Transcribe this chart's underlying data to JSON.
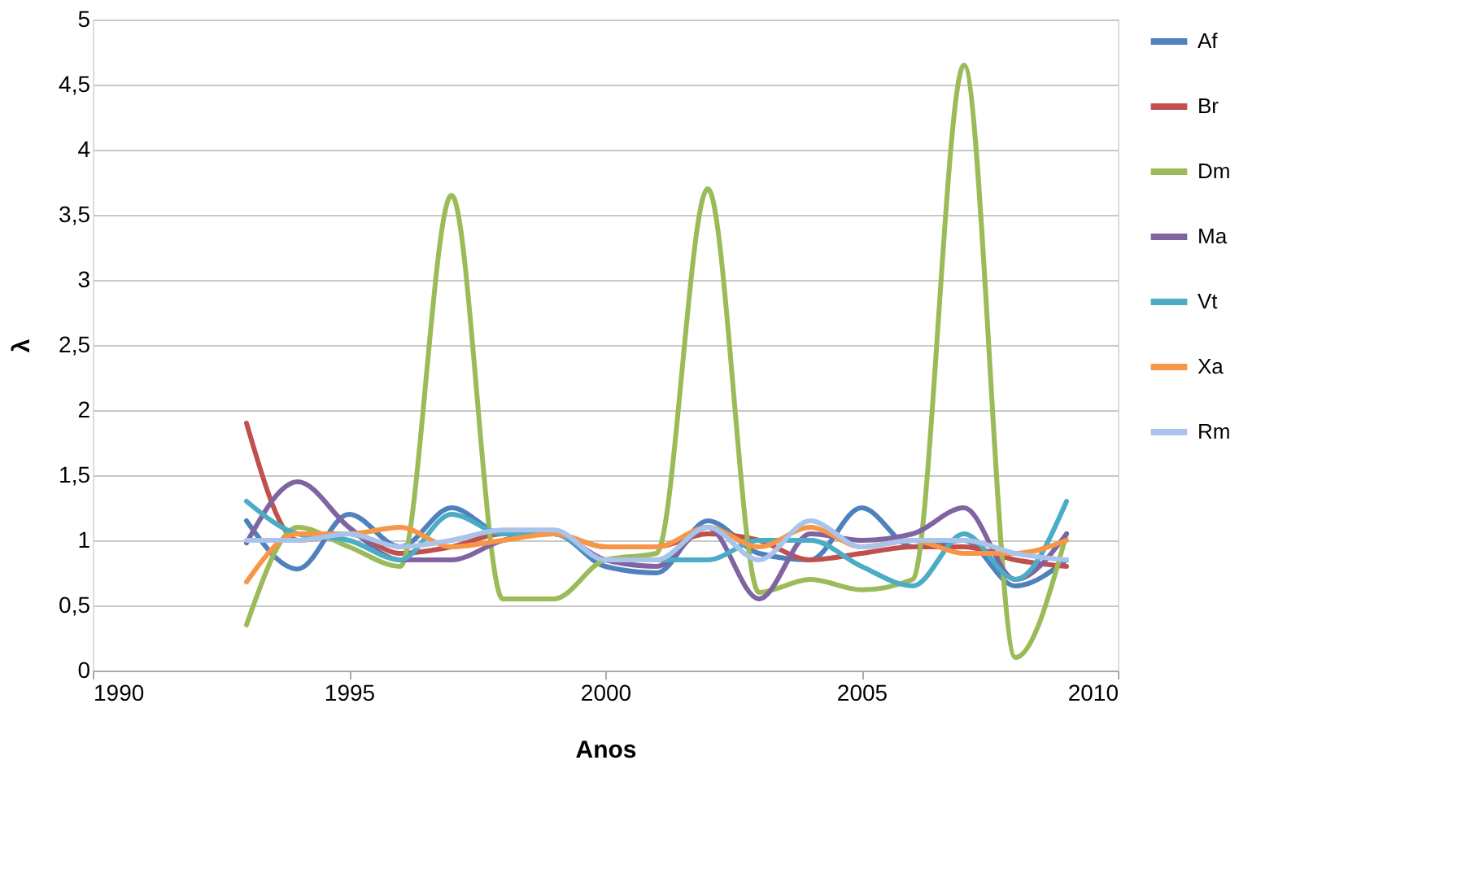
{
  "chart_data": {
    "type": "line",
    "xlabel": "Anos",
    "ylabel": "λ",
    "x": [
      1993,
      1994,
      1995,
      1996,
      1997,
      1998,
      1999,
      2000,
      2001,
      2002,
      2003,
      2004,
      2005,
      2006,
      2007,
      2008,
      2009
    ],
    "series": [
      {
        "name": "Af",
        "color": "#4f81bd",
        "values": [
          1.15,
          0.78,
          1.2,
          0.95,
          1.25,
          1.05,
          1.05,
          0.8,
          0.75,
          1.15,
          0.9,
          0.85,
          1.25,
          0.95,
          1.0,
          0.65,
          0.85
        ]
      },
      {
        "name": "Br",
        "color": "#c0504d",
        "values": [
          1.9,
          1.0,
          1.05,
          0.9,
          0.95,
          1.05,
          1.05,
          0.95,
          0.95,
          1.05,
          1.0,
          0.85,
          0.9,
          0.95,
          0.95,
          0.85,
          0.8
        ]
      },
      {
        "name": "Dm",
        "color": "#9bbb59",
        "values": [
          0.35,
          1.1,
          0.95,
          0.8,
          3.65,
          0.55,
          0.55,
          0.85,
          0.9,
          3.7,
          0.6,
          0.7,
          0.62,
          0.7,
          4.65,
          0.1,
          1.05
        ]
      },
      {
        "name": "Ma",
        "color": "#8064a2",
        "values": [
          0.98,
          1.45,
          1.1,
          0.85,
          0.85,
          1.0,
          1.05,
          0.85,
          0.8,
          1.1,
          0.55,
          1.05,
          1.0,
          1.05,
          1.25,
          0.7,
          1.05
        ]
      },
      {
        "name": "Vt",
        "color": "#4bacc6",
        "values": [
          1.3,
          1.05,
          1.0,
          0.85,
          1.2,
          1.05,
          1.05,
          0.85,
          0.85,
          0.85,
          1.0,
          1.0,
          0.8,
          0.65,
          1.05,
          0.7,
          1.3
        ]
      },
      {
        "name": "Xa",
        "color": "#f79646",
        "values": [
          0.68,
          1.05,
          1.05,
          1.1,
          0.95,
          1.0,
          1.05,
          0.95,
          0.95,
          1.1,
          0.95,
          1.1,
          0.95,
          1.0,
          0.9,
          0.9,
          1.0
        ]
      },
      {
        "name": "Rm",
        "color": "#a9c4eb",
        "values": [
          1.0,
          1.0,
          1.05,
          0.95,
          1.0,
          1.08,
          1.08,
          0.85,
          0.85,
          1.1,
          0.85,
          1.15,
          0.95,
          1.0,
          1.0,
          0.9,
          0.85
        ]
      }
    ],
    "xlim": [
      1990,
      2010
    ],
    "xticks": [
      1990,
      1995,
      2000,
      2005,
      2010
    ],
    "ylim": [
      0,
      5
    ],
    "yticks": [
      0,
      {
        "value": 0.5,
        "label": "0,5"
      },
      1,
      {
        "value": 1.5,
        "label": "1,5"
      },
      2,
      {
        "value": 2.5,
        "label": "2,5"
      },
      3,
      {
        "value": 3.5,
        "label": "3,5"
      },
      4,
      {
        "value": 4.5,
        "label": "4,5"
      },
      5
    ],
    "grid": "y",
    "legend": "right",
    "line_style": "solid",
    "marker": "none"
  }
}
